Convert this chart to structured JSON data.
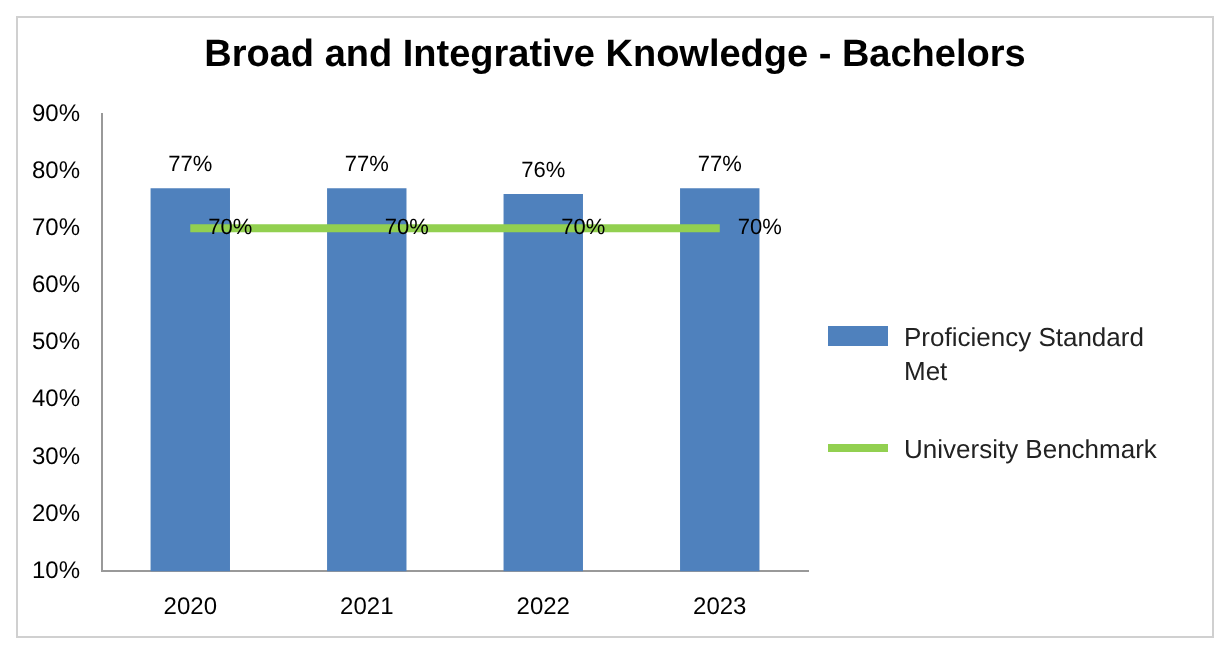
{
  "chart_data": {
    "type": "bar",
    "title": "Broad and Integrative Knowledge - Bachelors",
    "categories": [
      "2020",
      "2021",
      "2022",
      "2023"
    ],
    "series": [
      {
        "name": "Proficiency Standard Met",
        "color": "#4f81bd",
        "values": [
          77,
          77,
          76,
          77
        ],
        "value_labels": [
          "77%",
          "77%",
          "76%",
          "77%"
        ]
      },
      {
        "name": "University Benchmark",
        "type": "line",
        "color": "#92d050",
        "values": [
          70,
          70,
          70,
          70
        ],
        "value_labels": [
          "70%",
          "70%",
          "70%",
          "70%"
        ]
      }
    ],
    "ylim": [
      10,
      90
    ],
    "yticks": [
      {
        "value": 10,
        "label": "10%"
      },
      {
        "value": 20,
        "label": "20%"
      },
      {
        "value": 30,
        "label": "30%"
      },
      {
        "value": 40,
        "label": "40%"
      },
      {
        "value": 50,
        "label": "50%"
      },
      {
        "value": 60,
        "label": "60%"
      },
      {
        "value": 70,
        "label": "70%"
      },
      {
        "value": 80,
        "label": "80%"
      },
      {
        "value": 90,
        "label": "90%"
      }
    ],
    "grid": false,
    "legend": "right",
    "marker": "none",
    "line_style": "solid"
  }
}
